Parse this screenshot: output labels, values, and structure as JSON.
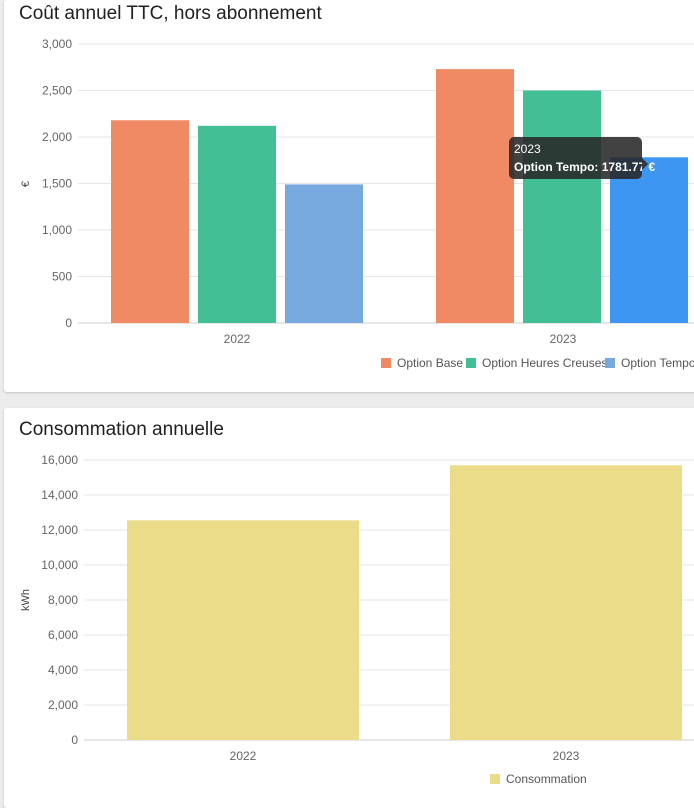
{
  "cards": [
    {
      "title": "Coût annuel TTC, hors abonnement"
    },
    {
      "title": "Consommation annuelle"
    }
  ],
  "tooltip": {
    "title": "2023",
    "label": "Option Tempo: 1781.77 €"
  },
  "chart_data": [
    {
      "type": "bar",
      "title": "Coût annuel TTC, hors abonnement",
      "xlabel": "",
      "ylabel": "€",
      "categories": [
        "2022",
        "2023"
      ],
      "ylim": [
        0,
        3000
      ],
      "yticks": [
        "0",
        "500",
        "1,000",
        "1,500",
        "2,000",
        "2,500",
        "3,000"
      ],
      "ytick_values": [
        0,
        500,
        1000,
        1500,
        2000,
        2500,
        3000
      ],
      "grid": true,
      "legend": "bottom-right",
      "series": [
        {
          "name": "Option Base",
          "color": "#ef8a65",
          "values": [
            2180,
            2730
          ]
        },
        {
          "name": "Option Heures Creuses",
          "color": "#43bf96",
          "values": [
            2120,
            2500
          ]
        },
        {
          "name": "Option Tempo",
          "color": "#78a9de",
          "values": [
            1490,
            1781.77
          ]
        }
      ],
      "highlight": {
        "series": 2,
        "category": 1,
        "color": "#3d96f2"
      }
    },
    {
      "type": "bar",
      "title": "Consommation annuelle",
      "xlabel": "",
      "ylabel": "kWh",
      "categories": [
        "2022",
        "2023"
      ],
      "ylim": [
        0,
        16000
      ],
      "yticks": [
        "0",
        "2,000",
        "4,000",
        "6,000",
        "8,000",
        "10,000",
        "12,000",
        "14,000",
        "16,000"
      ],
      "ytick_values": [
        0,
        2000,
        4000,
        6000,
        8000,
        10000,
        12000,
        14000,
        16000
      ],
      "grid": true,
      "legend": "bottom-center",
      "series": [
        {
          "name": "Consommation",
          "color": "#ebdc89",
          "values": [
            12550,
            15700
          ]
        }
      ]
    }
  ]
}
